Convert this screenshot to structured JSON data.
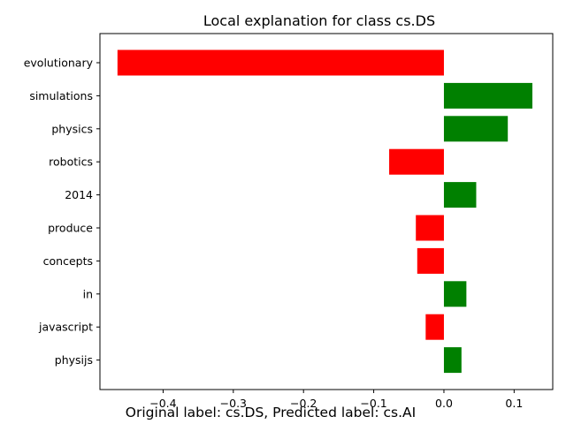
{
  "chart_data": {
    "type": "bar",
    "orientation": "horizontal",
    "title": "Local explanation for class cs.DS",
    "xlabel": "",
    "ylabel": "",
    "xlim": [
      -0.49,
      0.155
    ],
    "categories": [
      "evolutionary",
      "simulations",
      "physics",
      "robotics",
      "2014",
      "produce",
      "concepts",
      "in",
      "javascript",
      "physijs"
    ],
    "values": [
      -0.465,
      0.126,
      0.091,
      -0.078,
      0.046,
      -0.04,
      -0.038,
      0.032,
      -0.026,
      0.025
    ],
    "x_ticks": [
      -0.4,
      -0.3,
      -0.2,
      -0.1,
      0.0,
      0.1
    ],
    "x_tick_labels": [
      "−0.4",
      "−0.3",
      "−0.2",
      "−0.1",
      "0.0",
      "0.1"
    ],
    "colors": {
      "positive": "#008000",
      "negative": "#ff0000",
      "axis": "#000000"
    },
    "grid": false,
    "legend": "none"
  },
  "footer": {
    "caption": "Original label: cs.DS, Predicted label: cs.AI"
  }
}
